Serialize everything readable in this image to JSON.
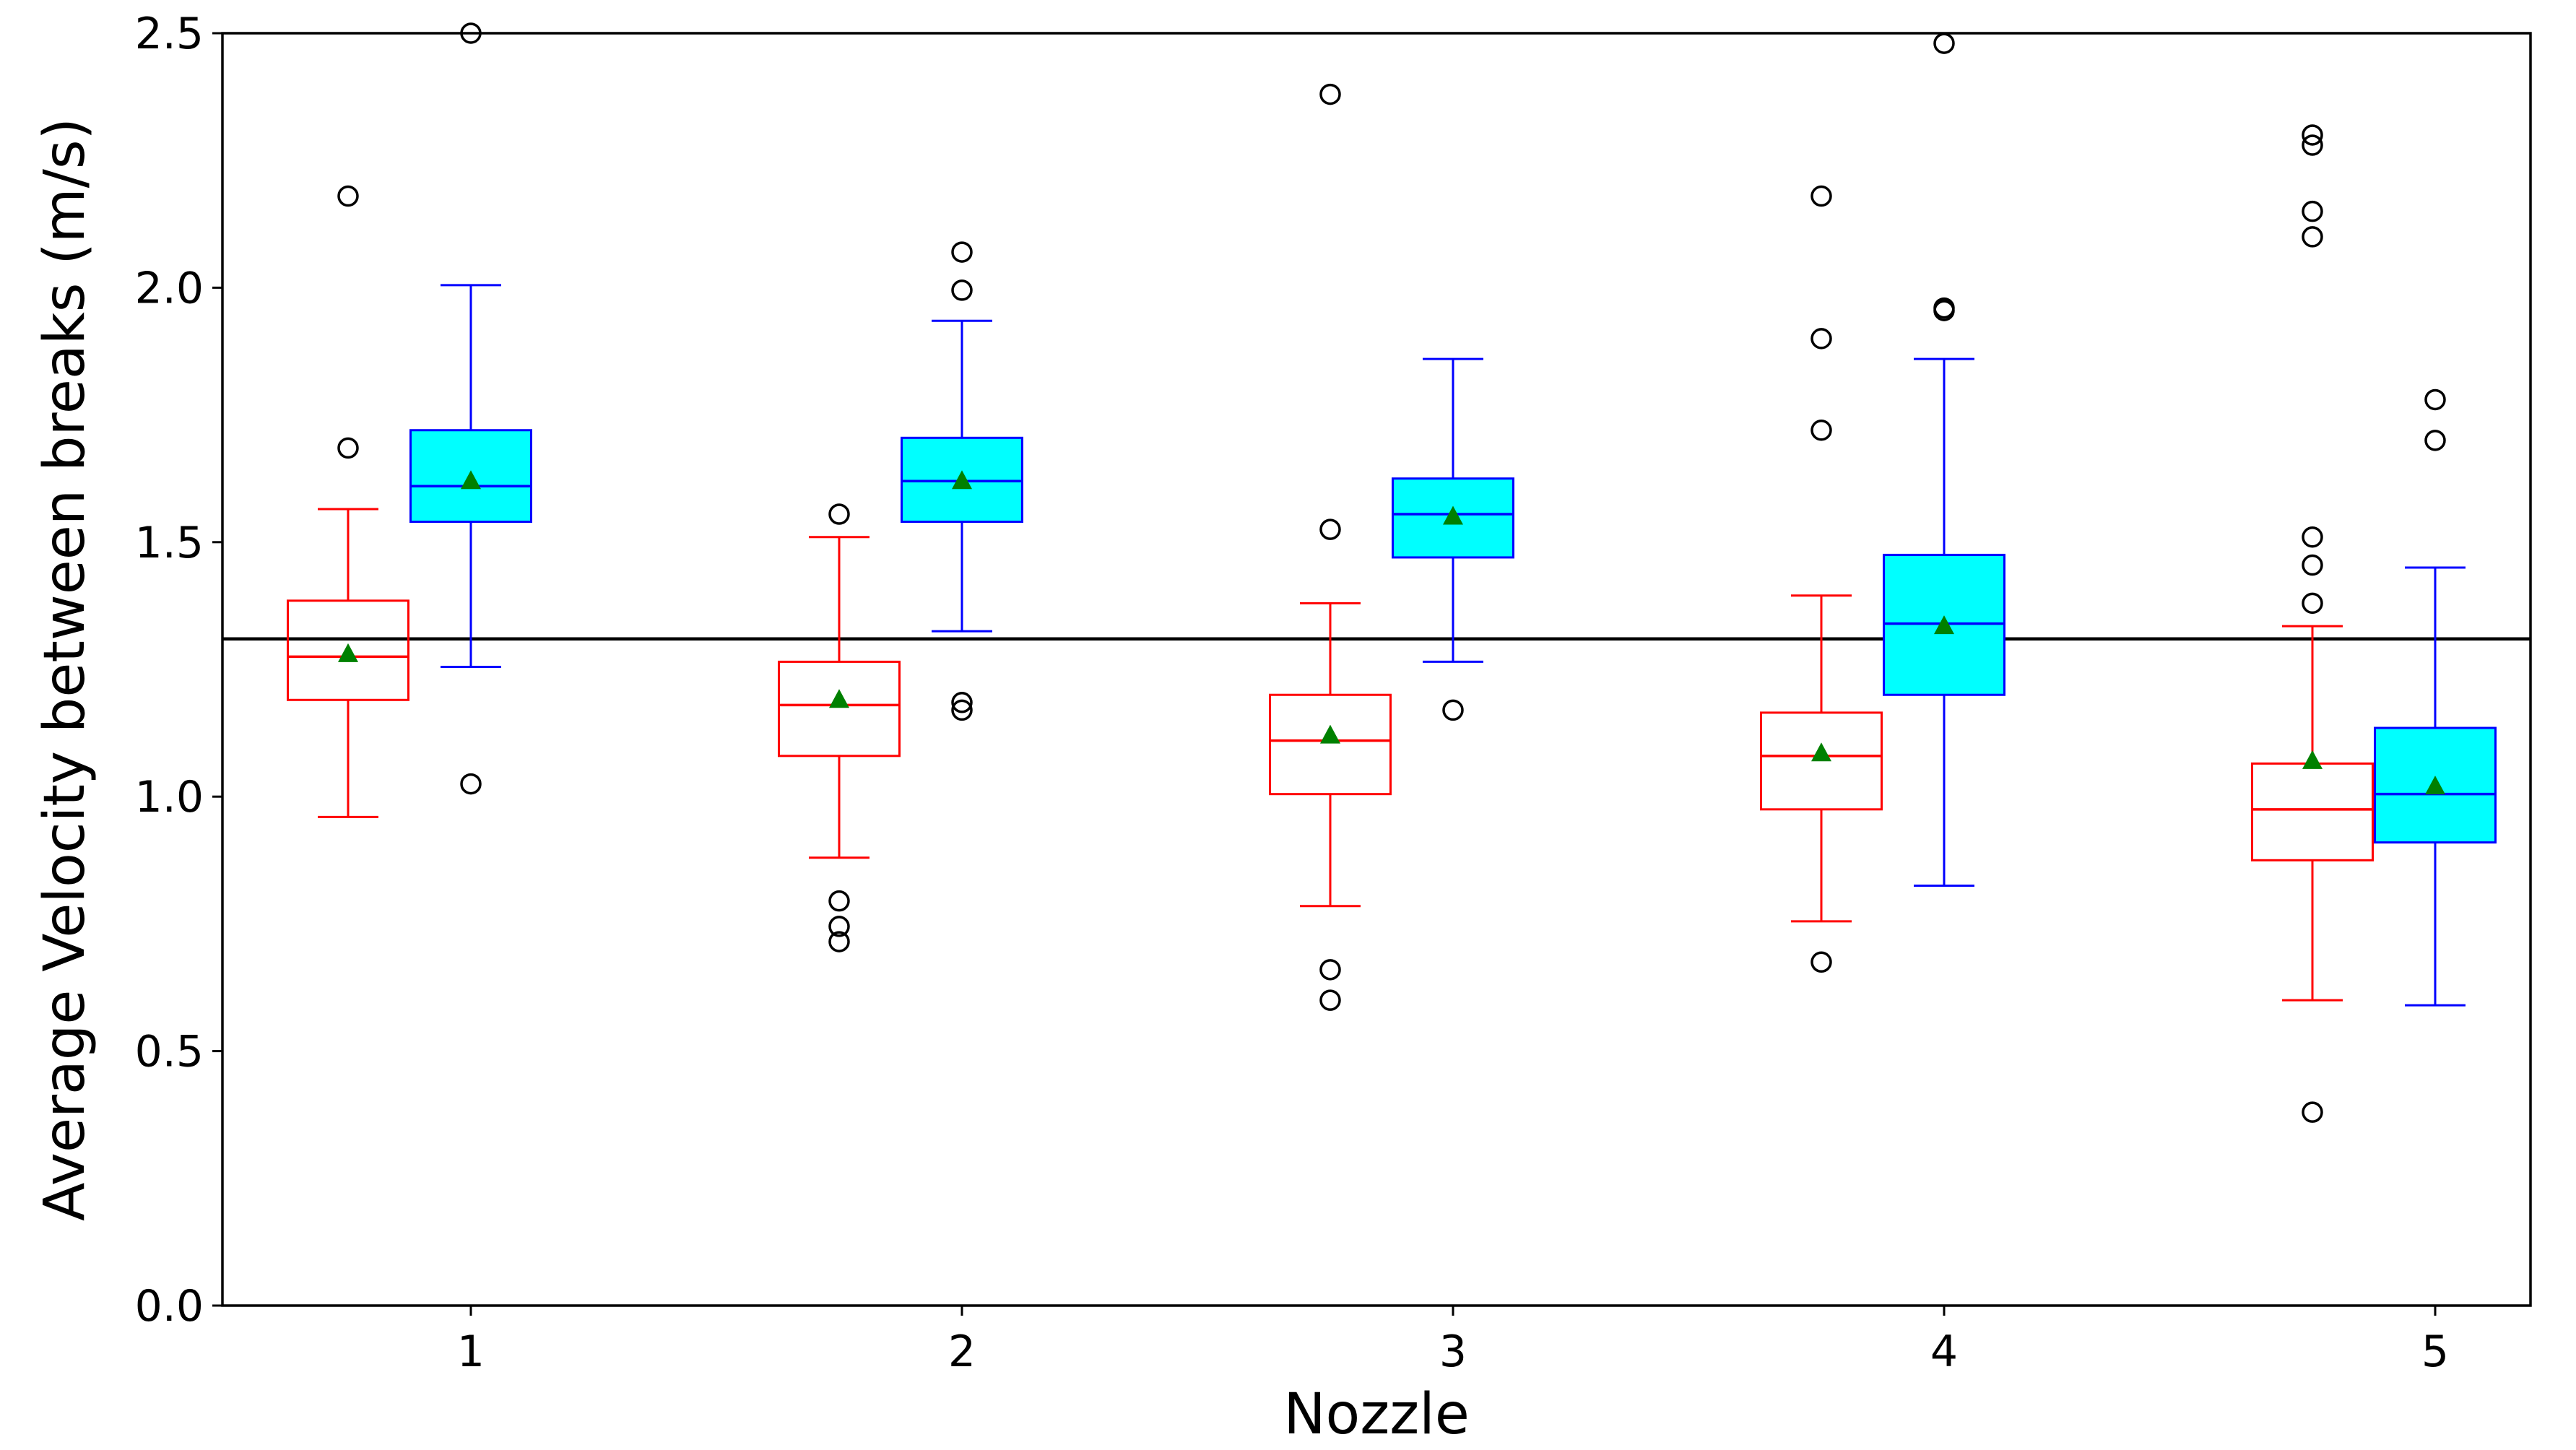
{
  "chart_data": {
    "type": "box",
    "title": "",
    "xlabel": "Nozzle",
    "ylabel": "Average Velocity between breaks (m/s)",
    "ylim": [
      0.0,
      2.5
    ],
    "yticks": [
      "0.0",
      "0.5",
      "1.0",
      "1.5",
      "2.0",
      "2.5"
    ],
    "categories": [
      "1",
      "2",
      "3",
      "4",
      "5"
    ],
    "reference_line": 1.31,
    "colors": {
      "red_series": "#ff0000",
      "blue_series": "#0000ff",
      "blue_fill": "#00ffff",
      "mean_marker": "#008000",
      "outlier": "#000000",
      "axis": "#000000"
    },
    "series": [
      {
        "name": "red",
        "boxes": [
          {
            "whisker_low": 0.96,
            "q1": 1.19,
            "median": 1.275,
            "q3": 1.385,
            "whisker_high": 1.565,
            "mean": 1.28,
            "outliers": [
              1.685,
              2.18
            ]
          },
          {
            "whisker_low": 0.88,
            "q1": 1.08,
            "median": 1.18,
            "q3": 1.265,
            "whisker_high": 1.51,
            "mean": 1.19,
            "outliers": [
              0.795,
              0.745,
              0.715,
              1.555
            ]
          },
          {
            "whisker_low": 0.785,
            "q1": 1.005,
            "median": 1.11,
            "q3": 1.2,
            "whisker_high": 1.38,
            "mean": 1.12,
            "outliers": [
              0.66,
              0.6,
              1.525,
              2.38
            ]
          },
          {
            "whisker_low": 0.755,
            "q1": 0.975,
            "median": 1.08,
            "q3": 1.165,
            "whisker_high": 1.395,
            "mean": 1.085,
            "outliers": [
              0.675,
              1.72,
              1.9,
              2.18
            ]
          },
          {
            "whisker_low": 0.6,
            "q1": 0.875,
            "median": 0.975,
            "q3": 1.065,
            "whisker_high": 1.335,
            "mean": 1.07,
            "outliers": [
              0.38,
              1.38,
              1.455,
              1.51,
              2.1,
              2.15,
              2.28,
              2.3
            ]
          }
        ]
      },
      {
        "name": "blue",
        "boxes": [
          {
            "whisker_low": 1.255,
            "q1": 1.54,
            "median": 1.61,
            "q3": 1.72,
            "whisker_high": 2.005,
            "mean": 1.62,
            "outliers": [
              1.025,
              2.5
            ]
          },
          {
            "whisker_low": 1.325,
            "q1": 1.54,
            "median": 1.62,
            "q3": 1.705,
            "whisker_high": 1.935,
            "mean": 1.62,
            "outliers": [
              1.17,
              1.185,
              1.995,
              2.07
            ]
          },
          {
            "whisker_low": 1.265,
            "q1": 1.47,
            "median": 1.555,
            "q3": 1.625,
            "whisker_high": 1.86,
            "mean": 1.55,
            "outliers": [
              1.17
            ]
          },
          {
            "whisker_low": 0.825,
            "q1": 1.2,
            "median": 1.34,
            "q3": 1.475,
            "whisker_high": 1.86,
            "mean": 1.335,
            "outliers": [
              1.955,
              1.96,
              2.48
            ]
          },
          {
            "whisker_low": 0.59,
            "q1": 0.91,
            "median": 1.005,
            "q3": 1.135,
            "whisker_high": 1.45,
            "mean": 1.02,
            "outliers": [
              1.7,
              1.78
            ]
          }
        ]
      }
    ]
  }
}
